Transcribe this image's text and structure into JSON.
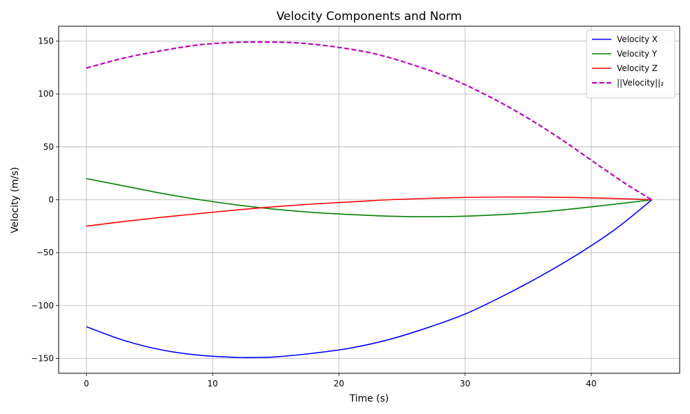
{
  "chart_data": {
    "type": "line",
    "title": "Velocity Components and Norm",
    "xlabel": "Time (s)",
    "ylabel": "Velocity (m/s)",
    "xlim": [
      -2.2,
      47.0
    ],
    "ylim": [
      -164,
      164
    ],
    "xticks": [
      0,
      10,
      20,
      30,
      40
    ],
    "yticks": [
      -150,
      -100,
      -50,
      0,
      50,
      100,
      150
    ],
    "xtick_labels": [
      "0",
      "10",
      "20",
      "30",
      "40"
    ],
    "ytick_labels": [
      "−150",
      "−100",
      "−50",
      "0",
      "50",
      "100",
      "150"
    ],
    "grid": true,
    "legend_position": "top-right",
    "series": [
      {
        "name": "Velocity X",
        "color": "#0000ff",
        "style": "solid",
        "x": [
          0,
          3,
          6,
          9,
          12,
          13.7,
          15,
          18,
          21,
          24,
          27,
          30,
          33,
          36,
          39,
          42,
          44.8
        ],
        "y": [
          -120,
          -133,
          -142,
          -147,
          -149,
          -149,
          -148.5,
          -145,
          -140,
          -132,
          -121,
          -108,
          -91,
          -72,
          -51,
          -27,
          0
        ]
      },
      {
        "name": "Velocity Y",
        "color": "#008000",
        "style": "solid",
        "x": [
          0,
          3,
          6,
          9,
          12,
          15,
          18,
          21,
          24,
          27,
          30,
          33,
          36,
          39,
          42,
          44.8
        ],
        "y": [
          20,
          13,
          6,
          0,
          -5,
          -9,
          -12,
          -14,
          -15.5,
          -16,
          -15.5,
          -14,
          -11.5,
          -8,
          -4,
          0
        ]
      },
      {
        "name": "Velocity Z",
        "color": "#ff0000",
        "style": "solid",
        "x": [
          0,
          3,
          6,
          9,
          12,
          15,
          18,
          21,
          24,
          27,
          30,
          33,
          36,
          39,
          42,
          44.8
        ],
        "y": [
          -25,
          -20.5,
          -16.5,
          -13,
          -9.5,
          -6.5,
          -4,
          -2,
          0,
          1.3,
          2.2,
          2.6,
          2.5,
          2,
          1.2,
          0
        ]
      },
      {
        "name": "||Velocity||₂",
        "color": "#bf00bf",
        "style": "dashed",
        "x": [
          0,
          3,
          6,
          9,
          12,
          14.5,
          17,
          20,
          23,
          26,
          29,
          32,
          35,
          38,
          41,
          43,
          44.8
        ],
        "y": [
          124.5,
          134,
          141,
          146.5,
          148.8,
          149,
          148,
          144,
          137.5,
          127,
          114,
          97,
          77,
          54,
          29,
          13,
          0
        ]
      }
    ]
  }
}
